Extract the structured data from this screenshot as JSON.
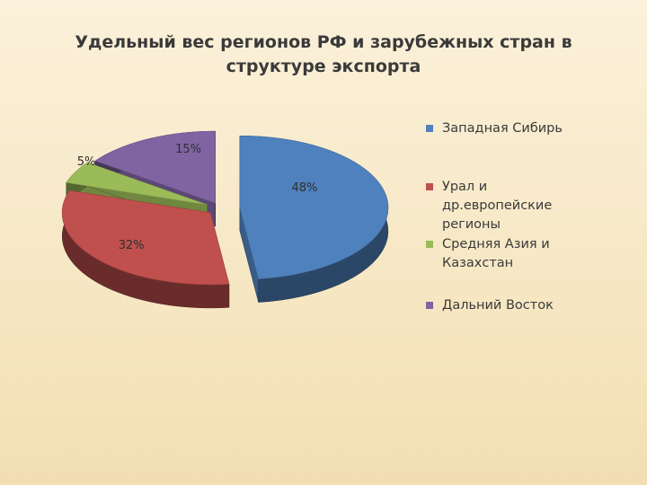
{
  "chart_data": {
    "type": "pie",
    "title_lines": [
      "Удельный вес регионов РФ и зарубежных стран в",
      "структуре экспорта"
    ],
    "categories": [
      "Западная Сибирь",
      "Урал и др.европейские регионы",
      "Средняя Азия и Казахстан",
      "Дальний Восток"
    ],
    "legend_lines": [
      [
        "Западная Сибирь"
      ],
      [
        "Урал и",
        "др.европейские",
        "регионы"
      ],
      [
        "Средняя Азия и",
        "Казахстан"
      ],
      [
        "Дальний Восток"
      ]
    ],
    "values": [
      48,
      32,
      5,
      15
    ],
    "data_labels": [
      "48%",
      "32%",
      "5%",
      "15%"
    ],
    "colors": [
      "#4f81bd",
      "#c0504d",
      "#9bbb59",
      "#8064a2"
    ],
    "legend_position": "right",
    "style": "3d-exploded-pie"
  }
}
